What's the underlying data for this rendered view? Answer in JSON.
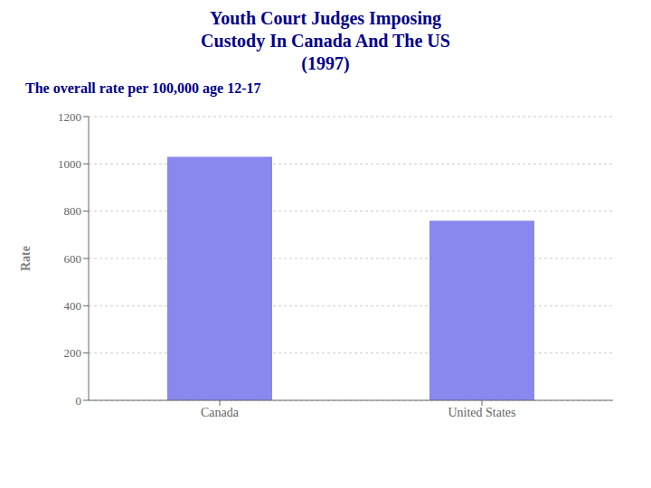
{
  "chart_data": {
    "type": "bar",
    "title": "Youth Court Judges Imposing\nCustody In Canada And The US\n(1997)",
    "subtitle": "The overall rate per 100,000 age 12-17",
    "categories": [
      "Canada",
      "United States"
    ],
    "values": [
      1030,
      760
    ],
    "color": "#8888ee",
    "ylabel": "Rate",
    "ylim": [
      0,
      1200
    ],
    "yticks": [
      0,
      200,
      400,
      600,
      800,
      1000,
      1200
    ],
    "grid": true
  }
}
